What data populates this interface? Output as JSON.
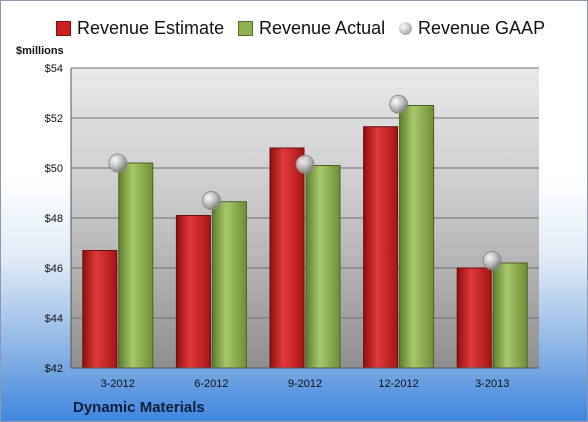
{
  "units_label": "$millions",
  "company": "Dynamic Materials",
  "colors": {
    "estimate": "#cc1f1f",
    "actual": "#8db350",
    "gaap": "#b7b7b7"
  },
  "chart_data": {
    "type": "bar",
    "title": "",
    "xlabel": "",
    "ylabel": "$millions",
    "categories": [
      "3-2012",
      "6-2012",
      "9-2012",
      "12-2012",
      "3-2013"
    ],
    "series": [
      {
        "name": "Revenue Estimate",
        "kind": "bar",
        "values": [
          46.7,
          48.1,
          50.8,
          51.65,
          46.0
        ]
      },
      {
        "name": "Revenue Actual",
        "kind": "bar",
        "values": [
          50.2,
          48.65,
          50.1,
          52.5,
          46.2
        ]
      },
      {
        "name": "Revenue GAAP",
        "kind": "marker",
        "values": [
          50.2,
          48.7,
          50.15,
          52.55,
          46.3
        ]
      }
    ],
    "ylim": [
      42,
      54
    ],
    "yticks": [
      "$42",
      "$44",
      "$46",
      "$48",
      "$50",
      "$52",
      "$54"
    ],
    "grid": true,
    "legend_position": "top"
  }
}
